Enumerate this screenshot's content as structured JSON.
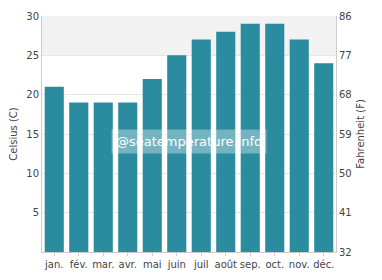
{
  "chart_data": {
    "type": "bar",
    "categories": [
      "jan.",
      "fév.",
      "mar.",
      "avr.",
      "mai",
      "juin",
      "juil",
      "août",
      "sep.",
      "oct.",
      "nov.",
      "déc."
    ],
    "values": [
      21,
      19,
      19,
      19,
      22,
      25,
      27,
      28,
      29,
      29,
      27,
      24
    ],
    "color": "#2a8c9e",
    "y_label": "Celsius (C)",
    "y2_label": "Fahrenheit (F)",
    "ylim": [
      0,
      30
    ],
    "yticks": [
      5,
      10,
      15,
      20,
      25,
      30
    ],
    "y2lim": [
      32,
      86
    ],
    "y2ticks": [
      32,
      41,
      50,
      59,
      68,
      77,
      86
    ],
    "annotations": [
      "@seatemperature.info"
    ],
    "grid": true
  }
}
